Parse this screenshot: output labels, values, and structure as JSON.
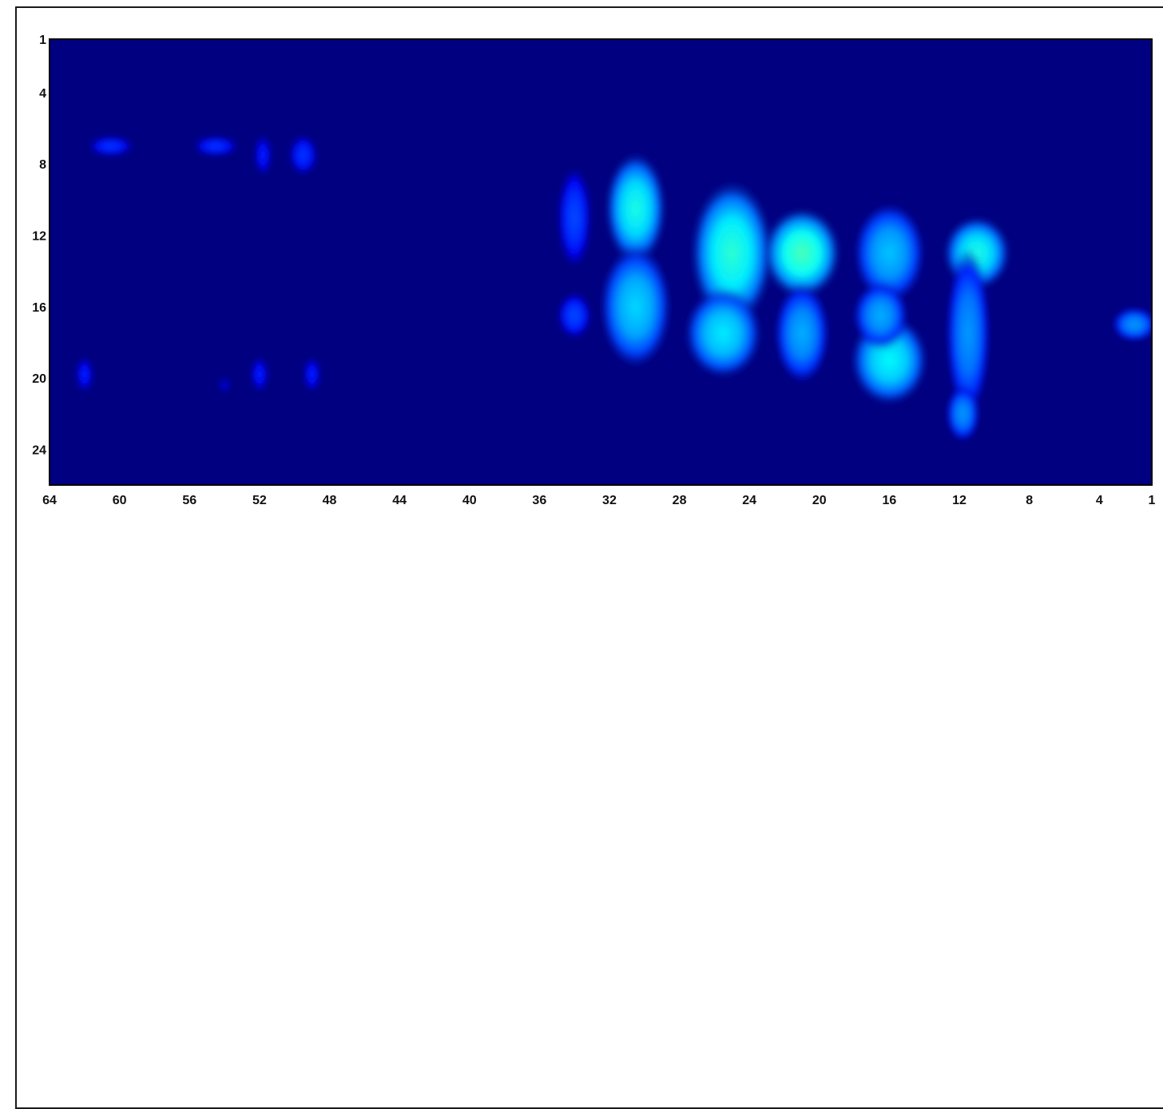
{
  "chart_data": {
    "type": "heatmap",
    "title": "",
    "xlabel": "",
    "ylabel": "",
    "x_ticks": [
      64,
      60,
      56,
      52,
      48,
      44,
      40,
      36,
      32,
      28,
      24,
      20,
      16,
      12,
      8,
      4,
      1
    ],
    "y_ticks": [
      1,
      4,
      8,
      12,
      16,
      20,
      24
    ],
    "xlim": [
      64,
      1
    ],
    "ylim": [
      1,
      26
    ],
    "x_axis_reversed": true,
    "y_axis_reversed": true,
    "value_range": [
      0,
      1
    ],
    "colormap": "jet",
    "background_color": "#000080",
    "blobs": [
      {
        "x": 30.5,
        "y": 10.5,
        "sx": 1.1,
        "sy": 2.0,
        "v": 0.4
      },
      {
        "x": 30.5,
        "y": 16.0,
        "sx": 1.3,
        "sy": 2.2,
        "v": 0.34
      },
      {
        "x": 25.0,
        "y": 13.0,
        "sx": 1.5,
        "sy": 2.6,
        "v": 0.42
      },
      {
        "x": 25.5,
        "y": 17.5,
        "sx": 1.4,
        "sy": 1.6,
        "v": 0.36
      },
      {
        "x": 21.0,
        "y": 13.0,
        "sx": 1.4,
        "sy": 1.6,
        "v": 0.45
      },
      {
        "x": 21.0,
        "y": 17.5,
        "sx": 1.0,
        "sy": 1.8,
        "v": 0.3
      },
      {
        "x": 16.0,
        "y": 13.0,
        "sx": 1.3,
        "sy": 1.8,
        "v": 0.32
      },
      {
        "x": 16.0,
        "y": 19.0,
        "sx": 1.4,
        "sy": 1.6,
        "v": 0.38
      },
      {
        "x": 16.5,
        "y": 16.5,
        "sx": 1.0,
        "sy": 1.2,
        "v": 0.3
      },
      {
        "x": 11.0,
        "y": 13.0,
        "sx": 1.2,
        "sy": 1.3,
        "v": 0.4
      },
      {
        "x": 11.5,
        "y": 17.5,
        "sx": 0.8,
        "sy": 3.0,
        "v": 0.28
      },
      {
        "x": 11.8,
        "y": 22.0,
        "sx": 0.6,
        "sy": 1.0,
        "v": 0.28
      },
      {
        "x": 34.0,
        "y": 11.0,
        "sx": 0.6,
        "sy": 1.8,
        "v": 0.2
      },
      {
        "x": 34.0,
        "y": 16.5,
        "sx": 0.6,
        "sy": 0.8,
        "v": 0.2
      },
      {
        "x": 2.0,
        "y": 17.0,
        "sx": 0.8,
        "sy": 0.6,
        "v": 0.28
      },
      {
        "x": 60.5,
        "y": 7.0,
        "sx": 0.8,
        "sy": 0.35,
        "v": 0.18
      },
      {
        "x": 54.5,
        "y": 7.0,
        "sx": 0.8,
        "sy": 0.35,
        "v": 0.18
      },
      {
        "x": 51.8,
        "y": 7.5,
        "sx": 0.3,
        "sy": 0.7,
        "v": 0.16
      },
      {
        "x": 49.5,
        "y": 7.5,
        "sx": 0.5,
        "sy": 0.7,
        "v": 0.18
      },
      {
        "x": 62.0,
        "y": 19.8,
        "sx": 0.3,
        "sy": 0.6,
        "v": 0.16
      },
      {
        "x": 52.0,
        "y": 19.8,
        "sx": 0.3,
        "sy": 0.6,
        "v": 0.16
      },
      {
        "x": 49.0,
        "y": 19.8,
        "sx": 0.3,
        "sy": 0.6,
        "v": 0.16
      },
      {
        "x": 54.0,
        "y": 20.4,
        "sx": 0.2,
        "sy": 0.25,
        "v": 0.1
      }
    ]
  }
}
